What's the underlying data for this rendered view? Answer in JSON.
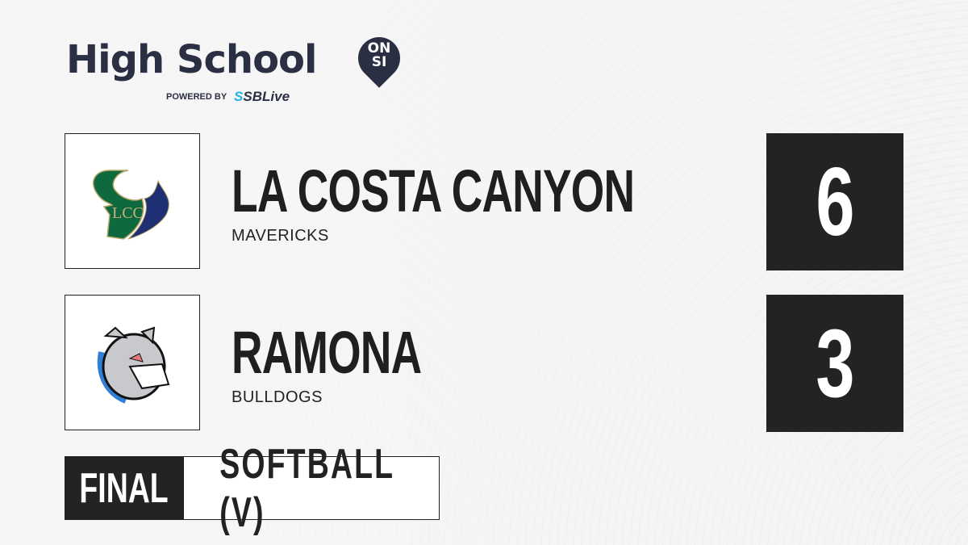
{
  "brand": {
    "title": "High School",
    "pin": "ON SI",
    "powered_by": "POWERED BY",
    "partner": "SBLive",
    "partner_accent": "#1fb2e8",
    "color": "#2b2f44"
  },
  "teams": [
    {
      "name": "LA COSTA CANYON",
      "mascot": "MAVERICKS",
      "score": "6",
      "logo": "lcc-horns-logo",
      "logo_text": "LCC",
      "colors": [
        "#0e6a3e",
        "#1f2f74"
      ]
    },
    {
      "name": "RAMONA",
      "mascot": "BULLDOGS",
      "score": "3",
      "logo": "bulldog-logo"
    }
  ],
  "game": {
    "status": "FINAL",
    "sport": "SOFTBALL (V)"
  }
}
